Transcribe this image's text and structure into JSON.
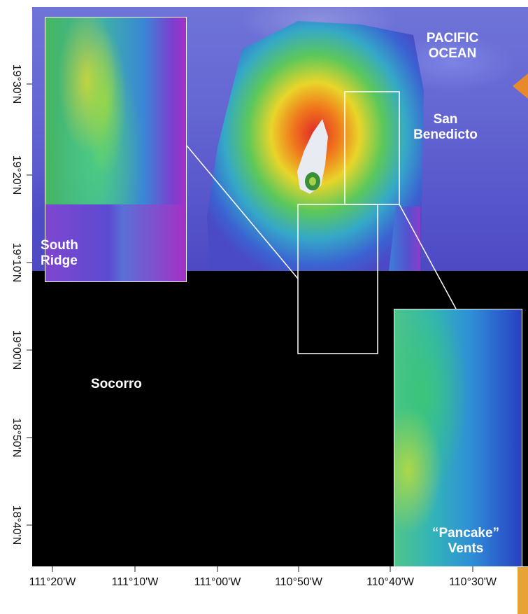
{
  "map": {
    "labels": {
      "pacific_line1": "PACIFIC",
      "pacific_line2": "OCEAN",
      "san_benedicto_line1": "San",
      "san_benedicto_line2": "Benedicto",
      "south_ridge_line1": "South",
      "south_ridge_line2": "Ridge",
      "socorro": "Socorro",
      "pancake_vents_line1": "“Pancake”",
      "pancake_vents_line2": "Vents"
    },
    "colors": {
      "frame_background": "#000000",
      "label_text": "#ffffff",
      "inset_border": "#ffffff",
      "accent_orange": "#e8892b"
    }
  },
  "axes": {
    "x_ticks": [
      "111°20'W",
      "111°10'W",
      "111°00'W",
      "110°50'W",
      "110°40'W",
      "110°30'W"
    ],
    "y_ticks": [
      "19°30'N",
      "19°20'N",
      "19°10'N",
      "19°00'N",
      "18°50'N",
      "18°40'N"
    ]
  }
}
